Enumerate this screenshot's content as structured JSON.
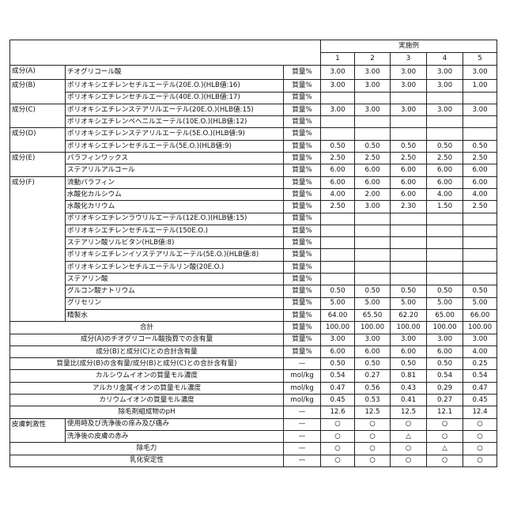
{
  "header": {
    "examples_title": "実施例",
    "examples": [
      "1",
      "2",
      "3",
      "4",
      "5"
    ]
  },
  "sections": [
    {
      "group": "成分(A)",
      "rows": [
        {
          "name": "チオグリコール酸",
          "unit": "質量%",
          "values": [
            "3.00",
            "3.00",
            "3.00",
            "3.00",
            "3.00"
          ]
        }
      ]
    },
    {
      "group": "成分(B)",
      "rows": [
        {
          "name": "ポリオキシエチレンセチルエーテル(20E.O.)(HLB値:16)",
          "unit": "質量%",
          "values": [
            "3.00",
            "3.00",
            "3.00",
            "3.00",
            "1.00"
          ]
        },
        {
          "name": "ポリオキシエチレンセチルエーテル(40E.O.)(HLB値:17)",
          "unit": "質量%"
        }
      ]
    },
    {
      "group": "成分(C)",
      "rows": [
        {
          "name": "ポリオキシエチレンステアリルエーテル(20E.O.)(HLB値:15)",
          "unit": "質量%",
          "values": [
            "3.00",
            "3.00",
            "3.00",
            "3.00",
            "3.00"
          ]
        },
        {
          "name": "ポリオキシエチレンベヘニルエーテル(10E.O.)(HLB値:12)",
          "unit": "質量%"
        }
      ]
    },
    {
      "group": "成分(D)",
      "rows": [
        {
          "name": "ポリオキシエチレンステアリルエーテル(5E.O.)(HLB値:9)",
          "unit": "質量%"
        },
        {
          "name": "ポリオキシエチレンセチルエーテル(5E.O.)(HLB値:9)",
          "unit": "質量%",
          "values": [
            "0.50",
            "0.50",
            "0.50",
            "0.50",
            "0.50"
          ]
        }
      ]
    },
    {
      "group": "成分(E)",
      "rows": [
        {
          "name": "パラフィンワックス",
          "unit": "質量%",
          "values": [
            "2.50",
            "2.50",
            "2.50",
            "2.50",
            "2.50"
          ]
        },
        {
          "name": "ステアリルアルコール",
          "unit": "質量%",
          "values": [
            "6.00",
            "6.00",
            "6.00",
            "6.00",
            "6.00"
          ]
        }
      ]
    },
    {
      "group": "成分(F)",
      "rows": [
        {
          "name": "流動パラフィン",
          "unit": "質量%",
          "values": [
            "6.00",
            "6.00",
            "6.00",
            "6.00",
            "6.00"
          ]
        },
        {
          "name": "水酸化カルシウム",
          "unit": "質量%",
          "values": [
            "4.00",
            "2.00",
            "6.00",
            "4.00",
            "4.00"
          ]
        },
        {
          "name": "水酸化カリウム",
          "unit": "質量%",
          "values": [
            "2.50",
            "3.00",
            "2.30",
            "1.50",
            "2.50"
          ]
        },
        {
          "name": "ポリオキシエチレンラウリルエーテル(12E.O.)(HLB値:15)",
          "unit": "質量%"
        },
        {
          "name": "ポリオキシエチレンセチルエーテル(150E.O.)",
          "unit": "質量%"
        },
        {
          "name": "ステアリン酸ソルビタン(HLB値:8)",
          "unit": "質量%"
        },
        {
          "name": "ポリオキシエチレンイソステアリルエーテル(5E.O.)(HLB値:8)",
          "unit": "質量%"
        },
        {
          "name": "ポリオキシエチレンセチルエーテルリン酸(20E.O.)",
          "unit": "質量%"
        },
        {
          "name": "ステアリン酸",
          "unit": "質量%"
        },
        {
          "name": "グルコン酸ナトリウム",
          "unit": "質量%",
          "values": [
            "0.50",
            "0.50",
            "0.50",
            "0.50",
            "0.50"
          ]
        },
        {
          "name": "グリセリン",
          "unit": "質量%",
          "values": [
            "5.00",
            "5.00",
            "5.00",
            "5.00",
            "5.00"
          ]
        },
        {
          "name": "精製水",
          "unit": "質量%",
          "values": [
            "64.00",
            "65.50",
            "62.20",
            "65.00",
            "66.00"
          ]
        }
      ]
    },
    {
      "rows": [
        {
          "name": "合計",
          "unit": "質量%",
          "values": [
            "100.00",
            "100.00",
            "100.00",
            "100.00",
            "100.00"
          ]
        },
        {
          "name": "成分(A)のチオグリコール酸換算での含有量",
          "unit": "質量%",
          "values": [
            "3.00",
            "3.00",
            "3.00",
            "3.00",
            "3.00"
          ]
        },
        {
          "name": "成分(B)と成分(C)との合計含有量",
          "unit": "質量%",
          "values": [
            "6.00",
            "6.00",
            "6.00",
            "6.00",
            "4.00"
          ]
        },
        {
          "name": "質量比(成分(B)の含有量/成分(B)と成分(C)との合計含有量)",
          "unit": "—",
          "values": [
            "0.50",
            "0.50",
            "0.50",
            "0.50",
            "0.25"
          ]
        },
        {
          "name": "カルシウムイオンの質量モル濃度",
          "unit": "mol/kg",
          "values": [
            "0.54",
            "0.27",
            "0.81",
            "0.54",
            "0.54"
          ]
        },
        {
          "name": "アルカリ金属イオンの質量モル濃度",
          "unit": "mol/kg",
          "values": [
            "0.47",
            "0.56",
            "0.43",
            "0.29",
            "0.47"
          ]
        },
        {
          "name": "カリウムイオンの質量モル濃度",
          "unit": "mol/kg",
          "values": [
            "0.45",
            "0.53",
            "0.41",
            "0.27",
            "0.45"
          ]
        },
        {
          "name": "除毛剤組成物のpH",
          "unit": "—",
          "values": [
            "12.6",
            "12.5",
            "12.5",
            "12.1",
            "12.4"
          ]
        }
      ]
    },
    {
      "group": "皮膚刺激性",
      "rows": [
        {
          "name": "使用時及び洗浄後の痒み及び痛み",
          "unit": "—",
          "values": [
            "○",
            "○",
            "○",
            "○",
            "○"
          ]
        },
        {
          "name": "洗浄後の皮膚の赤み",
          "unit": "—",
          "values": [
            "○",
            "○",
            "△",
            "○",
            "○"
          ]
        }
      ]
    },
    {
      "rows": [
        {
          "name": "除毛力",
          "unit": "—",
          "values": [
            "○",
            "○",
            "○",
            "△",
            "○"
          ]
        },
        {
          "name": "乳化安定性",
          "unit": "—",
          "values": [
            "○",
            "○",
            "○",
            "○",
            "○"
          ]
        }
      ]
    }
  ]
}
